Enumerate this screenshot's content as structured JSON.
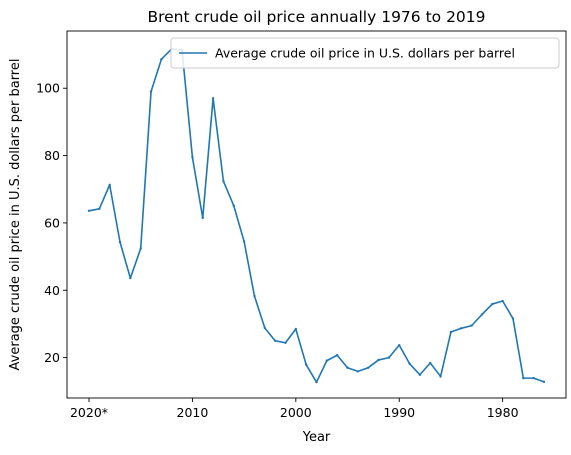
{
  "chart_data": {
    "type": "line",
    "title": "Brent crude oil price annually 1976 to 2019",
    "xlabel": "Year",
    "ylabel": "Average crude oil price in U.S. dollars per barrel",
    "x_tick_labels": [
      "2020*",
      "2010",
      "2000",
      "1990",
      "1980"
    ],
    "y_ticks": [
      20,
      40,
      60,
      80,
      100
    ],
    "ylim": [
      8.0,
      117.0
    ],
    "grid": false,
    "legend_position": "top-right",
    "colors": {
      "line": "#1f77b4"
    },
    "series": [
      {
        "name": "Average crude oil price in U.S. dollars per barrel",
        "x": [
          "2020*",
          "2019",
          "2018",
          "2017",
          "2016",
          "2015",
          "2014",
          "2013",
          "2012",
          "2011",
          "2010",
          "2009",
          "2008",
          "2007",
          "2006",
          "2005",
          "2004",
          "2003",
          "2002",
          "2001",
          "2000",
          "1999",
          "1998",
          "1997",
          "1996",
          "1995",
          "1994",
          "1993",
          "1992",
          "1991",
          "1990",
          "1989",
          "1988",
          "1987",
          "1986",
          "1985",
          "1984",
          "1983",
          "1982",
          "1981",
          "1980",
          "1979",
          "1978",
          "1977",
          "1976"
        ],
        "values": [
          63.6,
          64.2,
          71.3,
          54.3,
          43.6,
          52.4,
          99.0,
          108.6,
          111.7,
          111.3,
          79.5,
          61.5,
          97.0,
          72.4,
          65.1,
          54.5,
          38.3,
          28.8,
          25.0,
          24.4,
          28.5,
          17.9,
          12.7,
          19.1,
          20.7,
          17.0,
          15.9,
          17.0,
          19.3,
          20.0,
          23.7,
          18.2,
          14.9,
          18.4,
          14.4,
          27.6,
          28.7,
          29.5,
          32.8,
          35.9,
          36.8,
          31.6,
          13.9,
          13.9,
          12.8
        ]
      }
    ]
  }
}
